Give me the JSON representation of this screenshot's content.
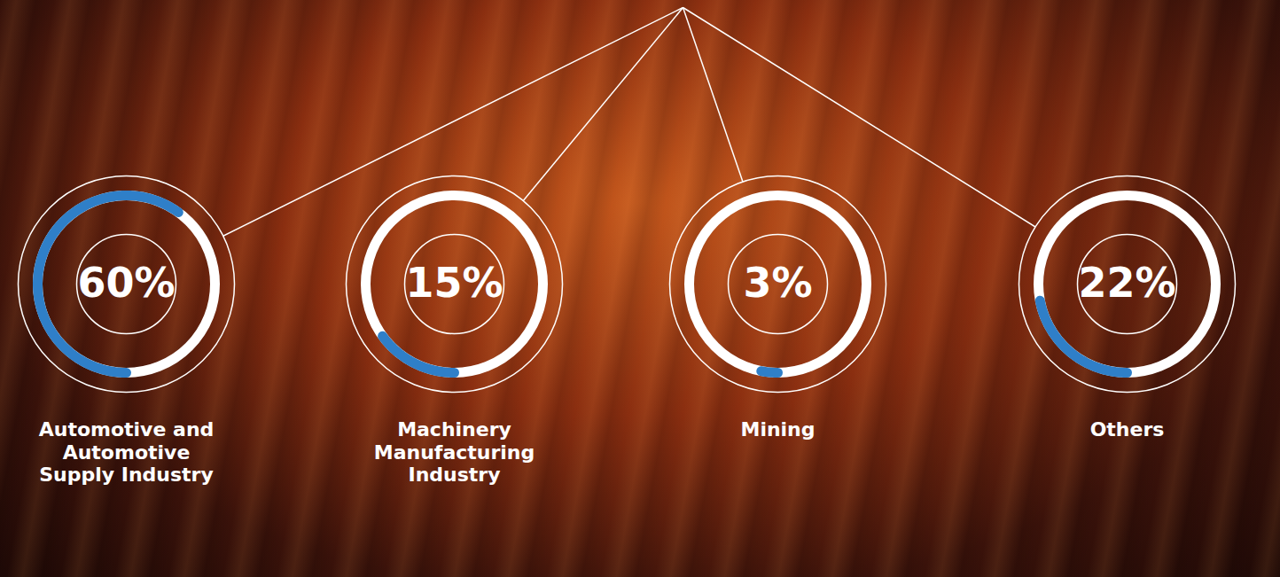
{
  "chart_data": {
    "type": "donut",
    "categories": [
      "Automotive and Automotive Supply Industry",
      "Machinery Manufacturing Industry",
      "Mining",
      "Others"
    ],
    "values": [
      60,
      15,
      3,
      22
    ],
    "value_labels": [
      "60%",
      "15%",
      "3%",
      "22%"
    ],
    "color": "#2f7fc8",
    "data_labels": true
  }
}
